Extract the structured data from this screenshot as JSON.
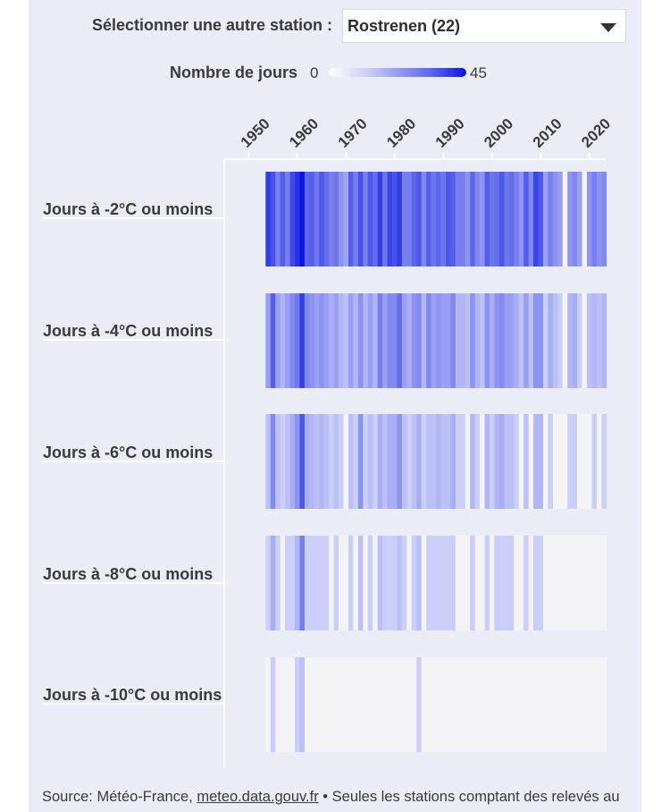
{
  "selector": {
    "label": "Sélectionner une autre station :",
    "value": "Rostrenen (22)"
  },
  "legend": {
    "title": "Nombre de jours",
    "min_label": "0",
    "max_label": "45",
    "min": 0,
    "max": 45
  },
  "chart_data": {
    "type": "heatmap",
    "title": "",
    "x_ticks": [
      "1950",
      "1960",
      "1970",
      "1980",
      "1990",
      "2000",
      "2010",
      "2020"
    ],
    "x_range": [
      1945,
      2023
    ],
    "years": [
      1954,
      1955,
      1956,
      1957,
      1958,
      1959,
      1960,
      1961,
      1962,
      1963,
      1964,
      1965,
      1966,
      1967,
      1968,
      1969,
      1970,
      1971,
      1972,
      1973,
      1974,
      1975,
      1976,
      1977,
      1978,
      1979,
      1980,
      1981,
      1982,
      1983,
      1984,
      1985,
      1986,
      1987,
      1988,
      1989,
      1990,
      1991,
      1992,
      1993,
      1994,
      1995,
      1996,
      1997,
      1998,
      1999,
      2000,
      2001,
      2002,
      2003,
      2004,
      2005,
      2006,
      2007,
      2008,
      2009,
      2010,
      2011,
      2012,
      2013,
      2014,
      2015,
      2016,
      2017,
      2018,
      2019,
      2020,
      2021,
      2022,
      2023
    ],
    "rows": [
      {
        "name": "Jours à -2°C ou moins",
        "values": [
          30,
          24,
          12,
          20,
          12,
          26,
          34,
          45,
          18,
          20,
          14,
          22,
          16,
          12,
          14,
          8,
          5,
          20,
          12,
          24,
          12,
          22,
          16,
          30,
          14,
          28,
          24,
          30,
          12,
          12,
          18,
          22,
          10,
          20,
          14,
          18,
          14,
          22,
          20,
          12,
          12,
          8,
          18,
          10,
          8,
          20,
          14,
          16,
          22,
          14,
          16,
          12,
          8,
          20,
          10,
          28,
          22,
          6,
          12,
          8,
          6,
          0,
          8,
          10,
          6,
          0,
          8,
          12,
          8,
          10
        ]
      },
      {
        "name": "Jours à -4°C ou moins",
        "values": [
          6,
          20,
          6,
          3,
          6,
          10,
          14,
          30,
          10,
          8,
          6,
          8,
          6,
          4,
          6,
          3,
          2,
          6,
          3,
          8,
          3,
          6,
          3,
          12,
          6,
          10,
          10,
          16,
          6,
          4,
          8,
          10,
          3,
          10,
          6,
          8,
          6,
          6,
          10,
          3,
          3,
          2,
          8,
          3,
          2,
          8,
          4,
          8,
          10,
          6,
          6,
          4,
          2,
          6,
          2,
          8,
          8,
          1,
          4,
          2,
          1,
          0,
          3,
          4,
          1,
          0,
          2,
          3,
          2,
          3
        ]
      },
      {
        "name": "Jours à -6°C ou moins",
        "values": [
          2,
          10,
          2,
          1,
          2,
          4,
          8,
          22,
          4,
          3,
          2,
          3,
          2,
          1,
          2,
          1,
          0,
          2,
          1,
          8,
          1,
          2,
          1,
          4,
          2,
          4,
          4,
          8,
          2,
          1,
          2,
          4,
          1,
          2,
          2,
          3,
          2,
          2,
          4,
          1,
          1,
          0,
          3,
          1,
          0,
          3,
          1,
          3,
          4,
          2,
          2,
          1,
          0,
          2,
          0,
          3,
          3,
          0,
          1,
          0,
          0,
          0,
          1,
          1,
          0,
          0,
          0,
          1,
          0,
          1
        ]
      },
      {
        "name": "Jours à -8°C ou moins",
        "values": [
          1,
          4,
          1,
          0,
          1,
          1,
          3,
          12,
          1,
          1,
          1,
          1,
          1,
          0,
          1,
          0,
          0,
          1,
          0,
          2,
          0,
          1,
          0,
          2,
          1,
          1,
          1,
          2,
          1,
          0,
          1,
          2,
          0,
          1,
          1,
          1,
          1,
          1,
          1,
          0,
          0,
          0,
          1,
          0,
          0,
          1,
          0,
          1,
          1,
          1,
          1,
          0,
          0,
          1,
          0,
          1,
          1,
          0,
          0,
          0,
          0,
          0,
          0,
          0,
          0,
          0,
          0,
          0,
          0,
          0
        ]
      },
      {
        "name": "Jours à -10°C ou moins",
        "values": [
          0,
          1,
          0,
          0,
          0,
          0,
          1,
          2,
          0,
          0,
          0,
          0,
          0,
          0,
          0,
          0,
          0,
          0,
          0,
          0,
          0,
          0,
          0,
          0,
          0,
          0,
          0,
          0,
          0,
          0,
          0,
          1,
          0,
          0,
          0,
          0,
          0,
          0,
          0,
          0,
          0,
          0,
          0,
          0,
          0,
          0,
          0,
          0,
          0,
          0,
          0,
          0,
          0,
          0,
          0,
          0,
          0,
          0,
          0,
          0,
          0,
          0,
          0,
          0,
          0,
          0,
          0,
          0,
          0,
          0
        ]
      }
    ]
  },
  "source": {
    "prefix": "Source: Météo-France, ",
    "link": "meteo.data.gouv.fr",
    "suffix": " • Seules les stations comptant des relevés au"
  },
  "colors": {
    "low": "#ffffff",
    "high": "#0a16e0",
    "empty": "#f4f4f7"
  }
}
